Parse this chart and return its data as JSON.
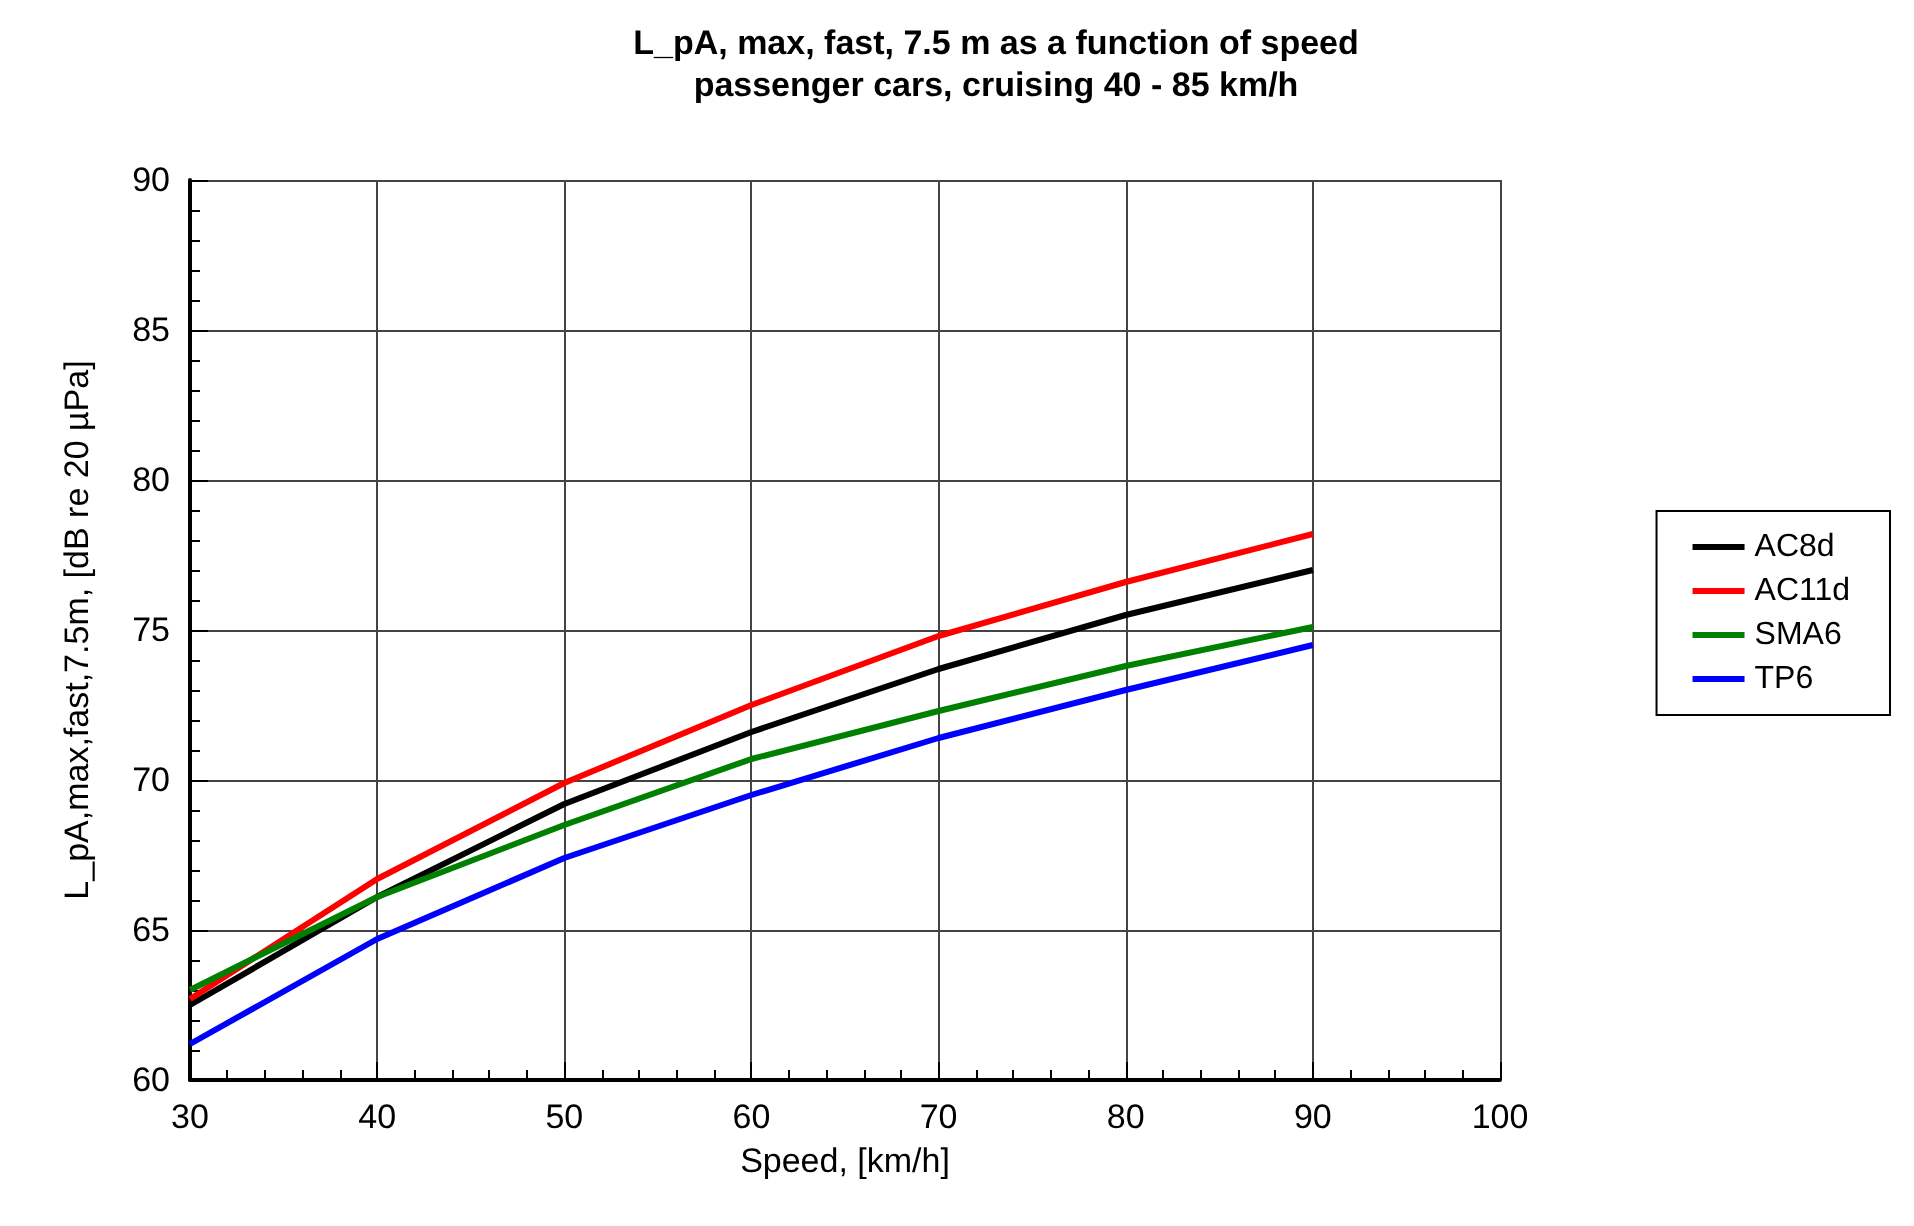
{
  "chart_data": {
    "type": "line",
    "title": "L_pA, max, fast, 7.5 m as a function of speed",
    "subtitle": "passenger cars, cruising 40 - 85 km/h",
    "xlabel": "Speed, [km/h]",
    "ylabel": "L_pA,max,fast,7.5m, [dB re 20 µPa]",
    "x": [
      30,
      40,
      50,
      60,
      70,
      80,
      90
    ],
    "series": [
      {
        "name": "AC8d",
        "color": "#000000",
        "values": [
          62.5,
          66.1,
          69.2,
          71.6,
          73.7,
          75.5,
          77.0
        ]
      },
      {
        "name": "AC11d",
        "color": "#ff0000",
        "values": [
          62.7,
          66.7,
          69.9,
          72.5,
          74.8,
          76.6,
          78.2
        ]
      },
      {
        "name": "SMA6",
        "color": "#008000",
        "values": [
          63.0,
          66.1,
          68.5,
          70.7,
          72.3,
          73.8,
          75.1
        ]
      },
      {
        "name": "TP6",
        "color": "#0000ff",
        "values": [
          61.2,
          64.7,
          67.4,
          69.5,
          71.4,
          73.0,
          74.5
        ]
      }
    ],
    "xlim": [
      30,
      100
    ],
    "xticks": [
      30,
      40,
      50,
      60,
      70,
      80,
      90,
      100
    ],
    "ylim": [
      60,
      90
    ],
    "yticks": [
      60,
      65,
      70,
      75,
      80,
      85,
      90
    ],
    "grid": true,
    "legend": "right",
    "marker": "none",
    "line_style": "solid"
  }
}
